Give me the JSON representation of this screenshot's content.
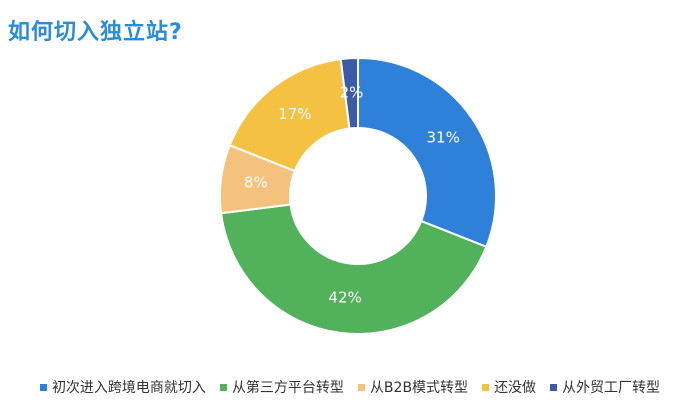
{
  "chart_data": {
    "type": "donut",
    "title": "如何切入独立站?",
    "categories": [
      "初次进入跨境电商就切入",
      "从第三方平台转型",
      "从B2B模式转型",
      "还没做",
      "从外贸工厂转型"
    ],
    "values": [
      31,
      42,
      8,
      17,
      2
    ],
    "value_labels": [
      "31%",
      "42%",
      "8%",
      "17%",
      "2%"
    ],
    "colors": [
      "#2f80d9",
      "#52b15b",
      "#f5c27e",
      "#f5c143",
      "#3b5aa9"
    ],
    "legend": "bottom"
  }
}
